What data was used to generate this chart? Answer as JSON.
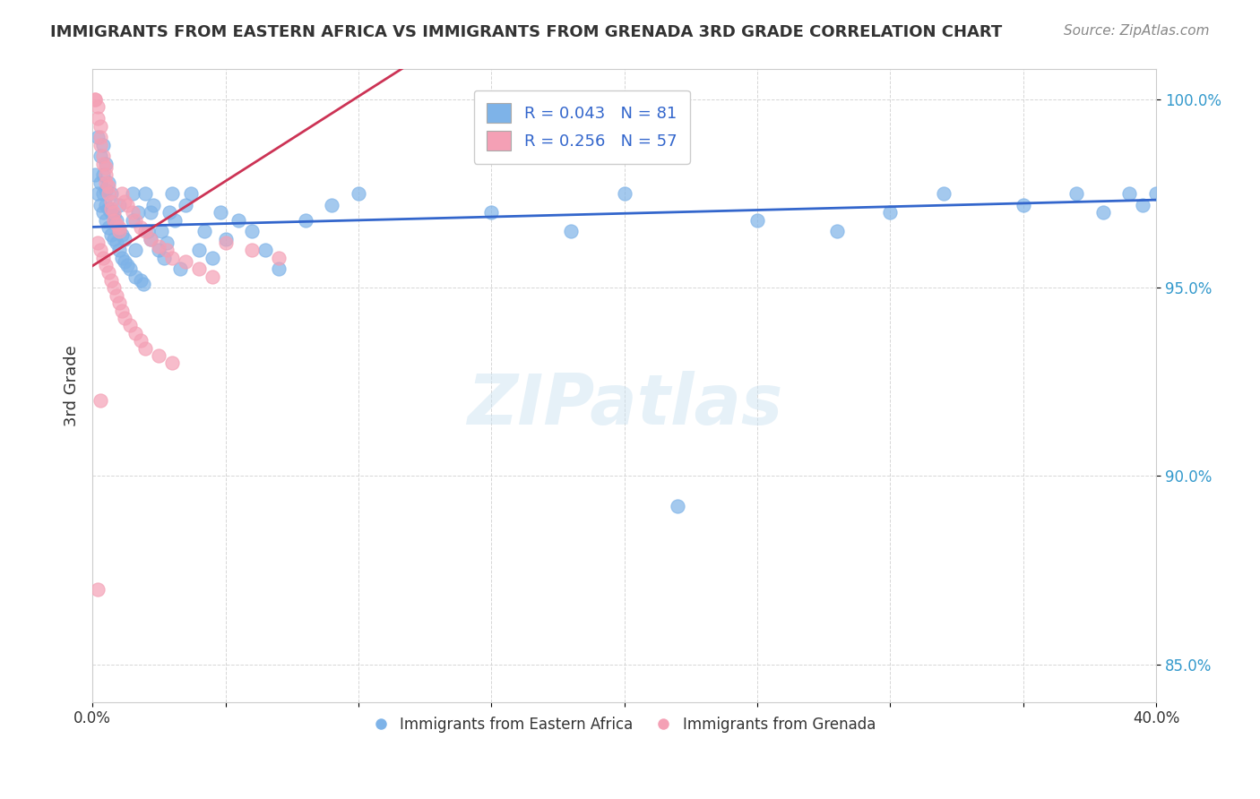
{
  "title": "IMMIGRANTS FROM EASTERN AFRICA VS IMMIGRANTS FROM GRENADA 3RD GRADE CORRELATION CHART",
  "source": "Source: ZipAtlas.com",
  "ylabel": "3rd Grade",
  "xlim": [
    0.0,
    0.4
  ],
  "ylim": [
    0.84,
    1.008
  ],
  "xticks": [
    0.0,
    0.05,
    0.1,
    0.15,
    0.2,
    0.25,
    0.3,
    0.35,
    0.4
  ],
  "xticklabels": [
    "0.0%",
    "",
    "",
    "",
    "",
    "",
    "",
    "",
    "40.0%"
  ],
  "yticks": [
    0.85,
    0.9,
    0.95,
    1.0
  ],
  "yticklabels": [
    "85.0%",
    "90.0%",
    "95.0%",
    "100.0%"
  ],
  "blue_color": "#7eb3e8",
  "pink_color": "#f4a0b5",
  "blue_line_color": "#3366cc",
  "pink_line_color": "#cc3355",
  "legend_text_color": "#3366cc",
  "watermark": "ZIPatlas",
  "R_blue": 0.043,
  "N_blue": 81,
  "R_pink": 0.256,
  "N_pink": 57,
  "blue_scatter_x": [
    0.001,
    0.002,
    0.002,
    0.003,
    0.003,
    0.003,
    0.004,
    0.004,
    0.004,
    0.004,
    0.005,
    0.005,
    0.005,
    0.005,
    0.006,
    0.006,
    0.006,
    0.007,
    0.007,
    0.007,
    0.008,
    0.008,
    0.009,
    0.009,
    0.01,
    0.01,
    0.01,
    0.011,
    0.011,
    0.012,
    0.012,
    0.013,
    0.014,
    0.015,
    0.015,
    0.016,
    0.016,
    0.017,
    0.018,
    0.019,
    0.02,
    0.021,
    0.022,
    0.022,
    0.023,
    0.025,
    0.026,
    0.027,
    0.028,
    0.029,
    0.03,
    0.031,
    0.033,
    0.035,
    0.037,
    0.04,
    0.042,
    0.045,
    0.048,
    0.05,
    0.055,
    0.06,
    0.065,
    0.07,
    0.08,
    0.09,
    0.1,
    0.15,
    0.18,
    0.2,
    0.25,
    0.28,
    0.3,
    0.32,
    0.35,
    0.37,
    0.38,
    0.39,
    0.395,
    0.4,
    0.22
  ],
  "blue_scatter_y": [
    0.98,
    0.975,
    0.99,
    0.972,
    0.978,
    0.985,
    0.97,
    0.975,
    0.98,
    0.988,
    0.968,
    0.972,
    0.976,
    0.983,
    0.966,
    0.971,
    0.978,
    0.964,
    0.97,
    0.975,
    0.963,
    0.969,
    0.962,
    0.968,
    0.96,
    0.965,
    0.972,
    0.958,
    0.964,
    0.957,
    0.963,
    0.956,
    0.955,
    0.968,
    0.975,
    0.953,
    0.96,
    0.97,
    0.952,
    0.951,
    0.975,
    0.965,
    0.963,
    0.97,
    0.972,
    0.96,
    0.965,
    0.958,
    0.962,
    0.97,
    0.975,
    0.968,
    0.955,
    0.972,
    0.975,
    0.96,
    0.965,
    0.958,
    0.97,
    0.963,
    0.968,
    0.965,
    0.96,
    0.955,
    0.968,
    0.972,
    0.975,
    0.97,
    0.965,
    0.975,
    0.968,
    0.965,
    0.97,
    0.975,
    0.972,
    0.975,
    0.97,
    0.975,
    0.972,
    0.975,
    0.892
  ],
  "pink_scatter_x": [
    0.001,
    0.001,
    0.002,
    0.002,
    0.003,
    0.003,
    0.003,
    0.004,
    0.004,
    0.005,
    0.005,
    0.005,
    0.006,
    0.006,
    0.007,
    0.007,
    0.008,
    0.008,
    0.009,
    0.01,
    0.01,
    0.011,
    0.012,
    0.013,
    0.015,
    0.016,
    0.018,
    0.02,
    0.022,
    0.025,
    0.028,
    0.03,
    0.035,
    0.04,
    0.045,
    0.05,
    0.06,
    0.07,
    0.002,
    0.003,
    0.004,
    0.005,
    0.006,
    0.007,
    0.008,
    0.009,
    0.01,
    0.011,
    0.012,
    0.014,
    0.016,
    0.018,
    0.02,
    0.025,
    0.03,
    0.002,
    0.003
  ],
  "pink_scatter_y": [
    1.0,
    1.0,
    0.998,
    0.995,
    0.993,
    0.99,
    0.988,
    0.985,
    0.983,
    0.982,
    0.98,
    0.978,
    0.977,
    0.975,
    0.973,
    0.971,
    0.97,
    0.968,
    0.967,
    0.966,
    0.965,
    0.975,
    0.973,
    0.972,
    0.97,
    0.968,
    0.966,
    0.965,
    0.963,
    0.961,
    0.96,
    0.958,
    0.957,
    0.955,
    0.953,
    0.962,
    0.96,
    0.958,
    0.962,
    0.96,
    0.958,
    0.956,
    0.954,
    0.952,
    0.95,
    0.948,
    0.946,
    0.944,
    0.942,
    0.94,
    0.938,
    0.936,
    0.934,
    0.932,
    0.93,
    0.87,
    0.92
  ]
}
